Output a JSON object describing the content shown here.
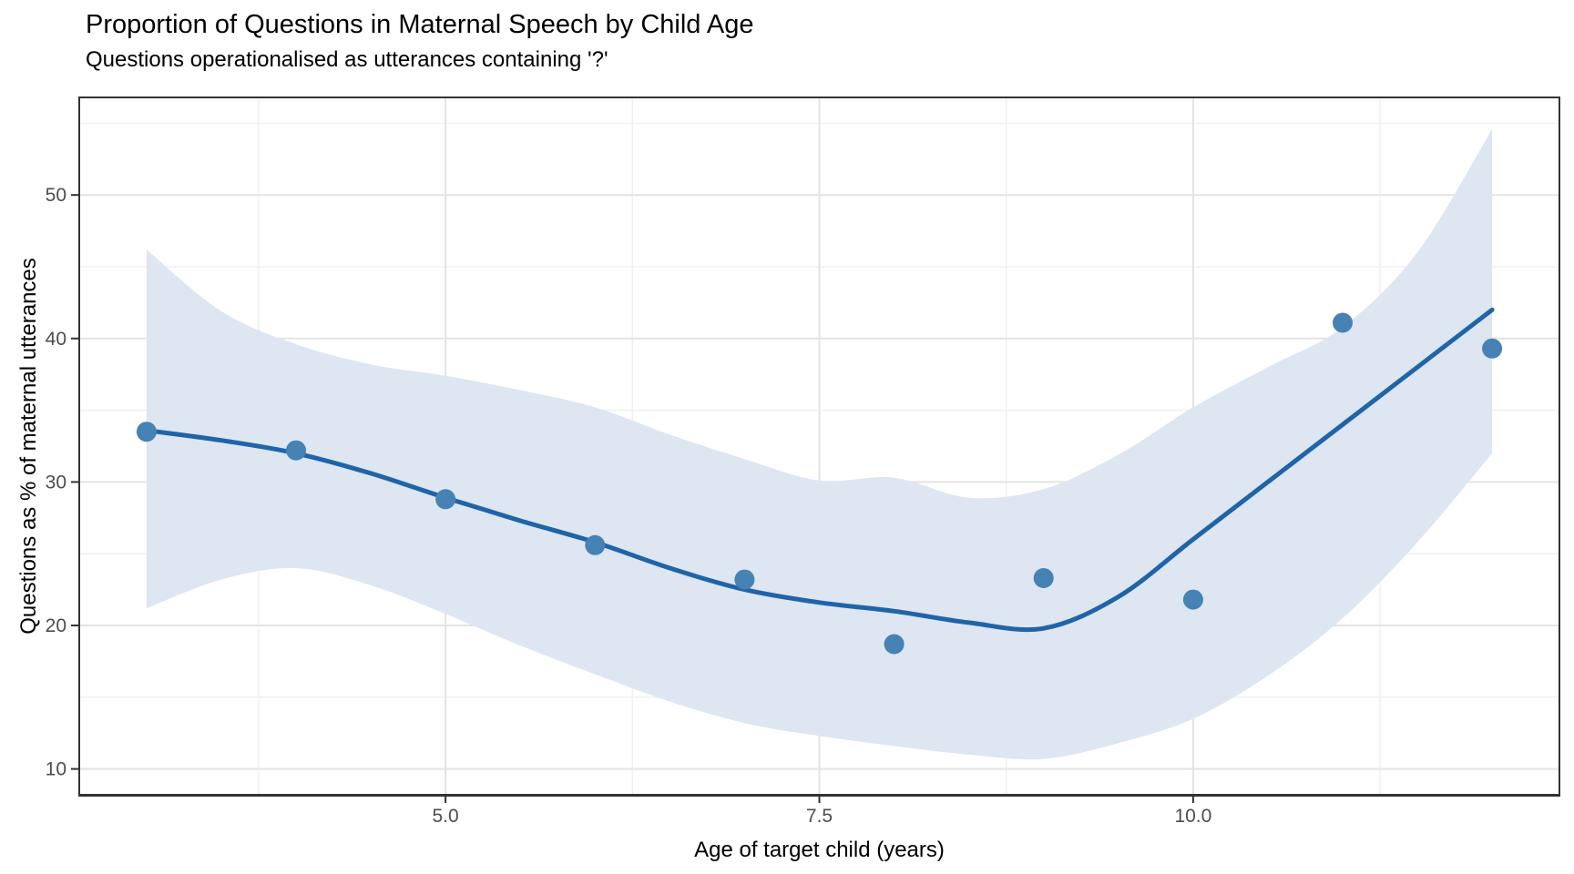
{
  "chart_data": {
    "type": "scatter",
    "title": "Proportion of Questions in Maternal Speech by Child Age",
    "subtitle": "Questions operationalised as utterances containing '?'",
    "xlabel": "Age of target child (years)",
    "ylabel": "Questions as % of maternal utterances",
    "xlim": [
      2.55,
      12.45
    ],
    "ylim": [
      8.2,
      56.8
    ],
    "grid": "on",
    "legend": "none",
    "x_major_ticks": [
      5.0,
      7.5,
      10.0
    ],
    "x_tick_labels": [
      "5.0",
      "7.5",
      "10.0"
    ],
    "x_minor_ticks": [
      3.75,
      6.25,
      8.75,
      11.25
    ],
    "y_major_ticks": [
      10,
      20,
      30,
      40,
      50
    ],
    "y_tick_labels": [
      "10",
      "20",
      "30",
      "40",
      "50"
    ],
    "y_minor_ticks": [
      15,
      25,
      35,
      45,
      55
    ],
    "points": {
      "name": "questions-percent-by-child-age",
      "x": [
        3,
        4,
        5,
        6,
        7,
        8,
        9,
        10,
        11,
        12
      ],
      "y": [
        33.5,
        32.2,
        28.8,
        25.6,
        23.2,
        18.7,
        23.3,
        21.8,
        41.1,
        39.3
      ]
    },
    "smooth": {
      "name": "loess-fit",
      "x": [
        3,
        3.5,
        4,
        4.5,
        5,
        5.5,
        6,
        6.5,
        7,
        7.5,
        8,
        8.5,
        9,
        9.5,
        10,
        10.5,
        11,
        11.5,
        12
      ],
      "y": [
        33.6,
        32.9,
        32.0,
        30.6,
        28.9,
        27.3,
        25.8,
        24.0,
        22.5,
        21.6,
        21.0,
        20.2,
        19.8,
        22.0,
        26.0,
        30.0,
        34.0,
        38.0,
        42.0
      ]
    },
    "ribbon": {
      "name": "confidence-band",
      "x": [
        3,
        3.5,
        4,
        4.5,
        5,
        5.5,
        6,
        6.5,
        7,
        7.5,
        8,
        8.5,
        9,
        9.5,
        10,
        10.5,
        11,
        11.5,
        12
      ],
      "upper": [
        46.2,
        41.9,
        39.6,
        38.2,
        37.4,
        36.4,
        35.2,
        33.3,
        31.6,
        30.1,
        30.3,
        28.9,
        29.5,
        31.9,
        35.2,
        38.0,
        40.8,
        46.0,
        54.6
      ],
      "lower": [
        21.2,
        23.2,
        24.0,
        22.8,
        20.8,
        18.6,
        16.6,
        14.7,
        13.2,
        12.3,
        11.6,
        11.0,
        10.7,
        11.8,
        13.5,
        16.5,
        20.5,
        25.8,
        32.0
      ]
    },
    "colors": {
      "point": "#4682b4",
      "line": "#2064a8",
      "ribbon": "#dde6f1",
      "grid_major": "#e3e3e3",
      "grid_minor": "#f0f0f0",
      "axis": "#333333",
      "tick_label": "#4d4d4d",
      "text": "#000000",
      "background": "#ffffff"
    }
  }
}
